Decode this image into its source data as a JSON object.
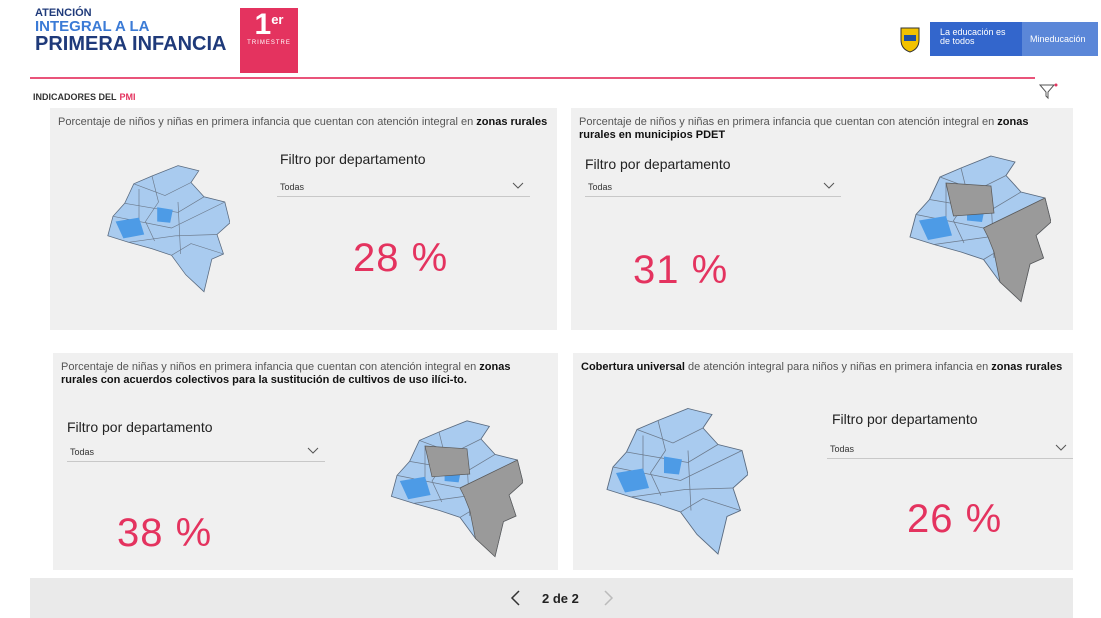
{
  "header": {
    "logo": {
      "line1": "ATENCIÓN",
      "line2": "INTEGRAL A LA",
      "line3": "PRIMERA INFANCIA"
    },
    "badge": {
      "number": "1",
      "suffix": "er",
      "label": "TRIMESTRE"
    },
    "gov": {
      "slogan": "La educación es de todos",
      "ministry": "Mineducación"
    }
  },
  "section": {
    "title": "INDICADORES DEL",
    "highlight": "PMI"
  },
  "panels": [
    {
      "description": [
        {
          "text": "Porcentaje de niños y niñas en primera infancia que cuentan con atención integral en ",
          "bold": false
        },
        {
          "text": "zonas rurales",
          "bold": true
        }
      ],
      "filter_label": "Filtro por departamento",
      "filter_value": "Todas",
      "value": "28 %"
    },
    {
      "description": [
        {
          "text": "Porcentaje de niños y niñas en primera infancia que cuentan con atención integral en ",
          "bold": false
        },
        {
          "text": "zonas rurales en municipios PDET",
          "bold": true
        }
      ],
      "filter_label": "Filtro por departamento",
      "filter_value": "Todas",
      "value": "31 %"
    },
    {
      "description": [
        {
          "text": "Porcentaje de niñas y niños en primera infancia que cuentan con atención integral en ",
          "bold": false
        },
        {
          "text": "zonas rurales con acuerdos colectivos para la sustitución de cultivos de uso ilíci-to.",
          "bold": true
        }
      ],
      "filter_label": "Filtro por departamento",
      "filter_value": "Todas",
      "value": "38 %"
    },
    {
      "description": [
        {
          "text": "Cobertura universal",
          "bold": true
        },
        {
          "text": " de atención integral para niños y niñas en primera infancia en ",
          "bold": false
        },
        {
          "text": "zonas rurales",
          "bold": true
        }
      ],
      "filter_label": "Filtro por departamento",
      "filter_value": "Todas",
      "value": "26 %"
    }
  ],
  "pager": {
    "label": "2 de 2"
  }
}
